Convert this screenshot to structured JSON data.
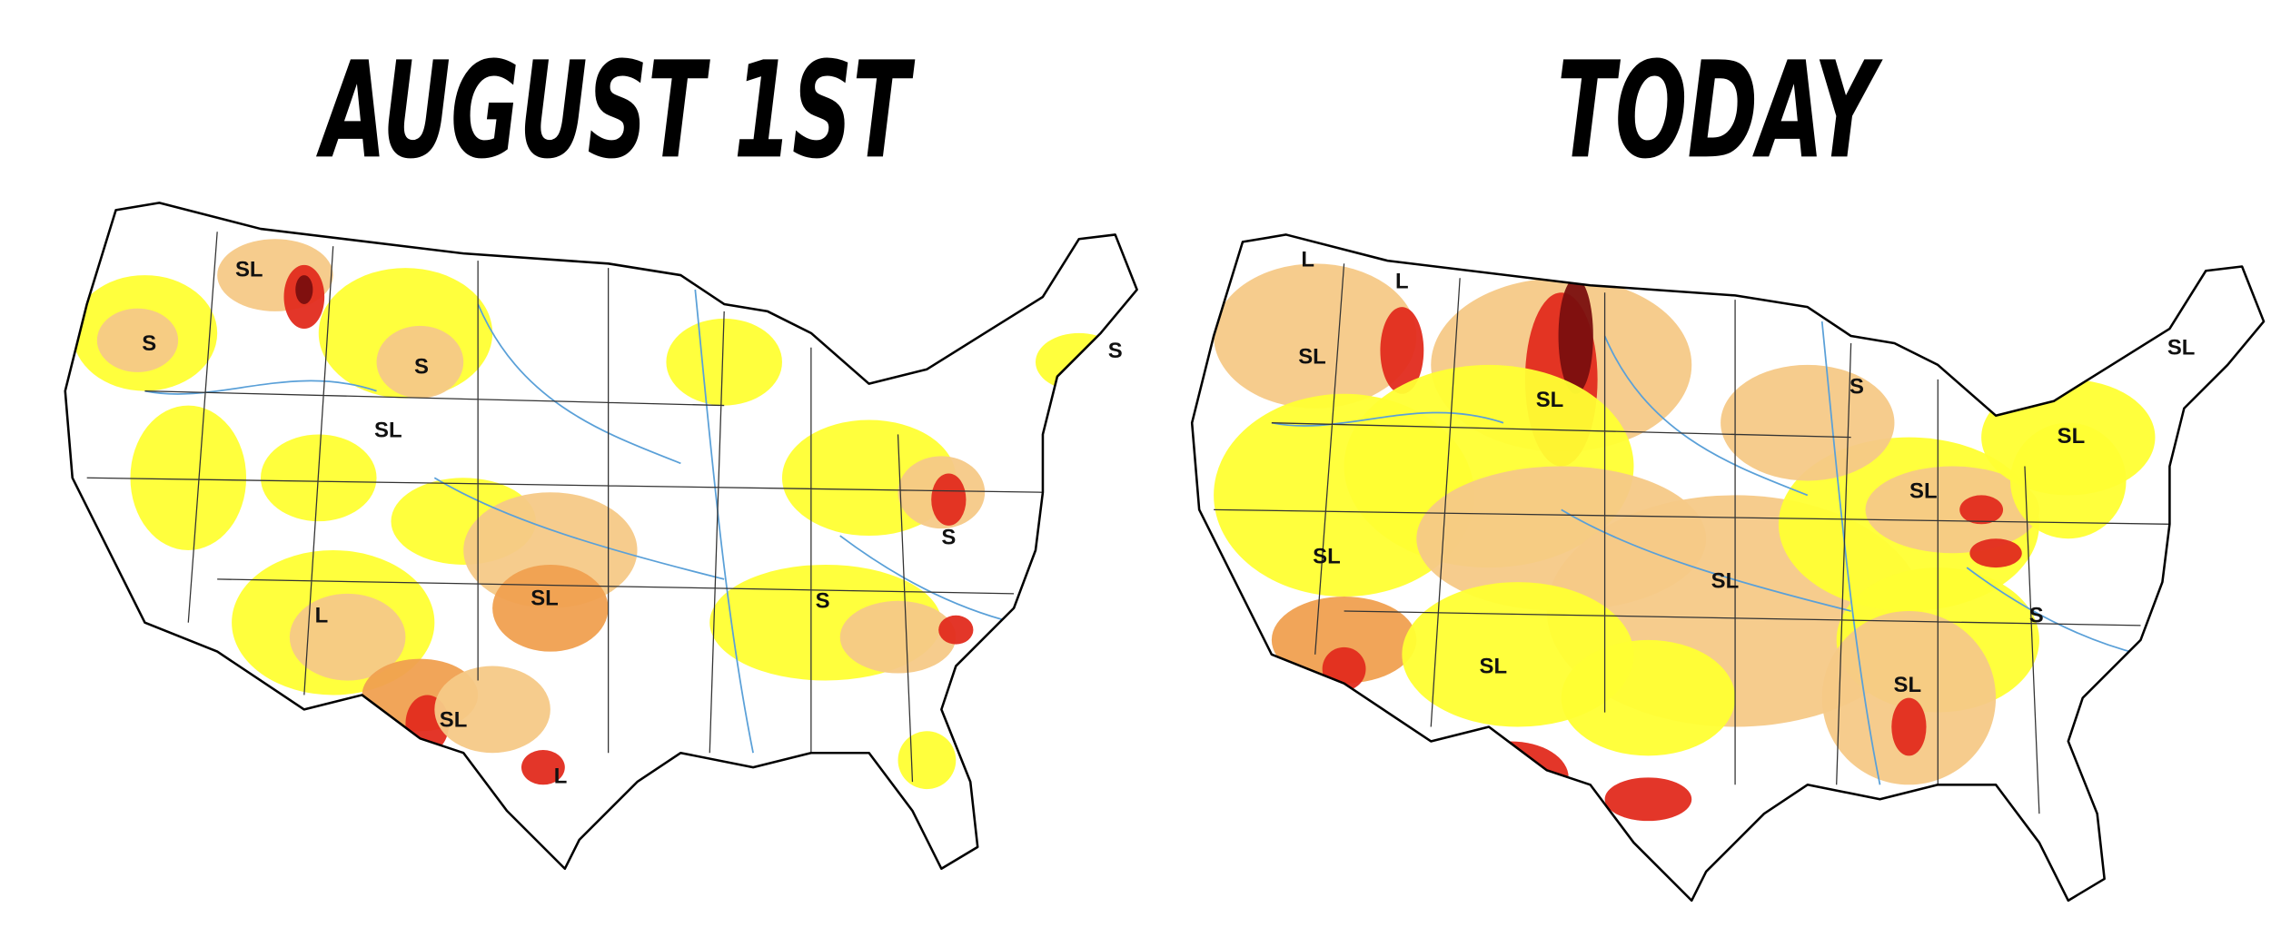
{
  "titles": [
    "AUGUST 1ST",
    "TODAY"
  ],
  "maps": [
    {
      "labels": [
        "S",
        "SL",
        "S",
        "SL",
        "SL",
        "L",
        "SL",
        "L",
        "S",
        "S",
        "S"
      ]
    },
    {
      "labels": [
        "L",
        "L",
        "SL",
        "SL",
        "S",
        "SL",
        "SL",
        "SL",
        "SL",
        "SL",
        "S",
        "SL",
        "SL"
      ]
    }
  ]
}
